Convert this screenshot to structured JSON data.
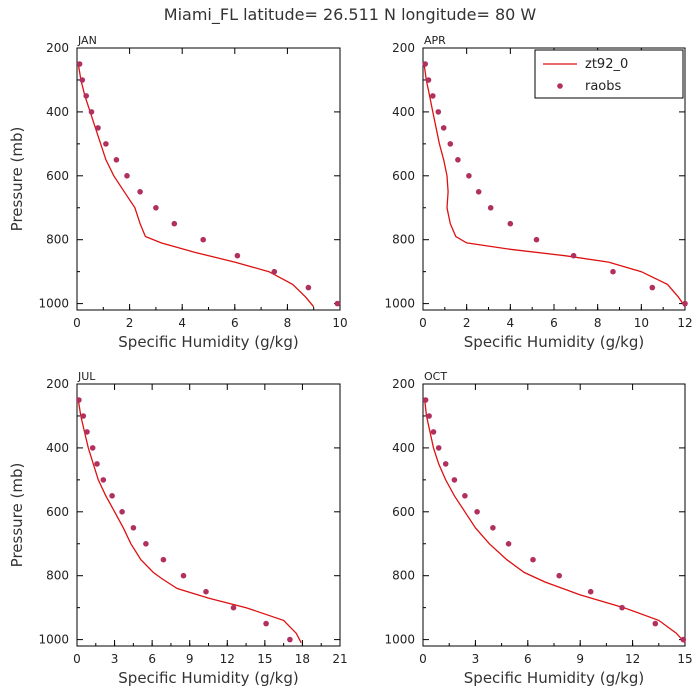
{
  "figure_title": "Miami_FL   latitude= 26.511 N longitude= 80 W",
  "colors": {
    "model": "#dd1111",
    "obs": "#b03060",
    "frame": "#000000"
  },
  "chart_data": [
    {
      "type": "line",
      "panel": "JAN",
      "xlabel": "Specific Humidity (g/kg)",
      "ylabel": "Pressure (mb)",
      "xlim": [
        0,
        10
      ],
      "ylim": [
        1020,
        200
      ],
      "xticks": [
        0,
        2,
        4,
        6,
        8,
        10
      ],
      "yticks": [
        200,
        400,
        600,
        800,
        1000
      ],
      "grid": false,
      "series": [
        {
          "name": "zt92_0",
          "kind": "line",
          "points": [
            [
              0.05,
              250
            ],
            [
              0.15,
              300
            ],
            [
              0.3,
              350
            ],
            [
              0.5,
              400
            ],
            [
              0.7,
              450
            ],
            [
              0.9,
              500
            ],
            [
              1.1,
              550
            ],
            [
              1.4,
              600
            ],
            [
              1.8,
              650
            ],
            [
              2.2,
              700
            ],
            [
              2.4,
              750
            ],
            [
              2.6,
              790
            ],
            [
              3.2,
              810
            ],
            [
              4.5,
              840
            ],
            [
              6.0,
              870
            ],
            [
              7.3,
              900
            ],
            [
              8.2,
              940
            ],
            [
              8.7,
              980
            ],
            [
              9.0,
              1010
            ]
          ]
        },
        {
          "name": "raobs",
          "kind": "points",
          "points": [
            [
              0.1,
              250
            ],
            [
              0.2,
              300
            ],
            [
              0.35,
              350
            ],
            [
              0.55,
              400
            ],
            [
              0.8,
              450
            ],
            [
              1.1,
              500
            ],
            [
              1.5,
              550
            ],
            [
              1.9,
              600
            ],
            [
              2.4,
              650
            ],
            [
              3.0,
              700
            ],
            [
              3.7,
              750
            ],
            [
              4.8,
              800
            ],
            [
              6.1,
              850
            ],
            [
              7.5,
              900
            ],
            [
              8.8,
              950
            ],
            [
              9.9,
              1000
            ]
          ]
        }
      ]
    },
    {
      "type": "line",
      "panel": "APR",
      "xlabel": "Specific Humidity (g/kg)",
      "ylabel": "",
      "xlim": [
        0,
        12
      ],
      "ylim": [
        1020,
        200
      ],
      "xticks": [
        0,
        2,
        4,
        6,
        8,
        10,
        12
      ],
      "yticks": [
        200,
        400,
        600,
        800,
        1000
      ],
      "grid": false,
      "legend": "top-right",
      "series": [
        {
          "name": "zt92_0",
          "kind": "line",
          "points": [
            [
              0.05,
              250
            ],
            [
              0.15,
              300
            ],
            [
              0.3,
              350
            ],
            [
              0.45,
              400
            ],
            [
              0.6,
              450
            ],
            [
              0.75,
              500
            ],
            [
              0.95,
              550
            ],
            [
              1.1,
              600
            ],
            [
              1.15,
              650
            ],
            [
              1.1,
              700
            ],
            [
              1.25,
              750
            ],
            [
              1.5,
              790
            ],
            [
              2.0,
              810
            ],
            [
              4.0,
              830
            ],
            [
              6.5,
              850
            ],
            [
              8.5,
              870
            ],
            [
              10.0,
              900
            ],
            [
              11.2,
              940
            ],
            [
              11.7,
              980
            ],
            [
              12.0,
              1010
            ]
          ]
        },
        {
          "name": "raobs",
          "kind": "points",
          "points": [
            [
              0.1,
              250
            ],
            [
              0.25,
              300
            ],
            [
              0.45,
              350
            ],
            [
              0.7,
              400
            ],
            [
              0.95,
              450
            ],
            [
              1.25,
              500
            ],
            [
              1.6,
              550
            ],
            [
              2.1,
              600
            ],
            [
              2.55,
              650
            ],
            [
              3.1,
              700
            ],
            [
              4.0,
              750
            ],
            [
              5.2,
              800
            ],
            [
              6.9,
              850
            ],
            [
              8.7,
              900
            ],
            [
              10.5,
              950
            ],
            [
              12.0,
              1000
            ]
          ]
        }
      ]
    },
    {
      "type": "line",
      "panel": "JUL",
      "xlabel": "Specific Humidity (g/kg)",
      "ylabel": "Pressure (mb)",
      "xlim": [
        0,
        21
      ],
      "ylim": [
        1020,
        200
      ],
      "xticks": [
        0,
        3,
        6,
        9,
        12,
        15,
        18,
        21
      ],
      "yticks": [
        200,
        400,
        600,
        800,
        1000
      ],
      "grid": false,
      "series": [
        {
          "name": "zt92_0",
          "kind": "line",
          "points": [
            [
              0.1,
              250
            ],
            [
              0.3,
              300
            ],
            [
              0.6,
              350
            ],
            [
              0.9,
              400
            ],
            [
              1.3,
              450
            ],
            [
              1.7,
              500
            ],
            [
              2.3,
              550
            ],
            [
              3.0,
              600
            ],
            [
              3.7,
              650
            ],
            [
              4.3,
              700
            ],
            [
              5.1,
              750
            ],
            [
              6.1,
              790
            ],
            [
              6.8,
              810
            ],
            [
              8.0,
              840
            ],
            [
              10.5,
              870
            ],
            [
              13.5,
              900
            ],
            [
              16.5,
              940
            ],
            [
              17.5,
              980
            ],
            [
              17.9,
              1010
            ]
          ]
        },
        {
          "name": "raobs",
          "kind": "points",
          "points": [
            [
              0.15,
              250
            ],
            [
              0.5,
              300
            ],
            [
              0.8,
              350
            ],
            [
              1.25,
              400
            ],
            [
              1.6,
              450
            ],
            [
              2.1,
              500
            ],
            [
              2.8,
              550
            ],
            [
              3.6,
              600
            ],
            [
              4.5,
              650
            ],
            [
              5.5,
              700
            ],
            [
              6.9,
              750
            ],
            [
              8.5,
              800
            ],
            [
              10.3,
              850
            ],
            [
              12.5,
              900
            ],
            [
              15.1,
              950
            ],
            [
              17.0,
              1000
            ]
          ]
        }
      ]
    },
    {
      "type": "line",
      "panel": "OCT",
      "xlabel": "Specific Humidity (g/kg)",
      "ylabel": "",
      "xlim": [
        0,
        15
      ],
      "ylim": [
        1020,
        200
      ],
      "xticks": [
        0,
        3,
        6,
        9,
        12,
        15
      ],
      "yticks": [
        200,
        400,
        600,
        800,
        1000
      ],
      "grid": false,
      "series": [
        {
          "name": "zt92_0",
          "kind": "line",
          "points": [
            [
              0.1,
              250
            ],
            [
              0.2,
              300
            ],
            [
              0.4,
              350
            ],
            [
              0.6,
              400
            ],
            [
              0.9,
              450
            ],
            [
              1.3,
              500
            ],
            [
              1.8,
              550
            ],
            [
              2.4,
              600
            ],
            [
              3.0,
              650
            ],
            [
              3.8,
              700
            ],
            [
              4.8,
              750
            ],
            [
              5.8,
              790
            ],
            [
              7.0,
              820
            ],
            [
              9.0,
              860
            ],
            [
              11.5,
              900
            ],
            [
              13.5,
              940
            ],
            [
              14.5,
              980
            ],
            [
              15.0,
              1010
            ]
          ]
        },
        {
          "name": "raobs",
          "kind": "points",
          "points": [
            [
              0.15,
              250
            ],
            [
              0.35,
              300
            ],
            [
              0.6,
              350
            ],
            [
              0.9,
              400
            ],
            [
              1.3,
              450
            ],
            [
              1.8,
              500
            ],
            [
              2.4,
              550
            ],
            [
              3.1,
              600
            ],
            [
              4.0,
              650
            ],
            [
              4.9,
              700
            ],
            [
              6.3,
              750
            ],
            [
              7.8,
              800
            ],
            [
              9.6,
              850
            ],
            [
              11.4,
              900
            ],
            [
              13.3,
              950
            ],
            [
              14.9,
              1000
            ]
          ]
        }
      ]
    }
  ]
}
